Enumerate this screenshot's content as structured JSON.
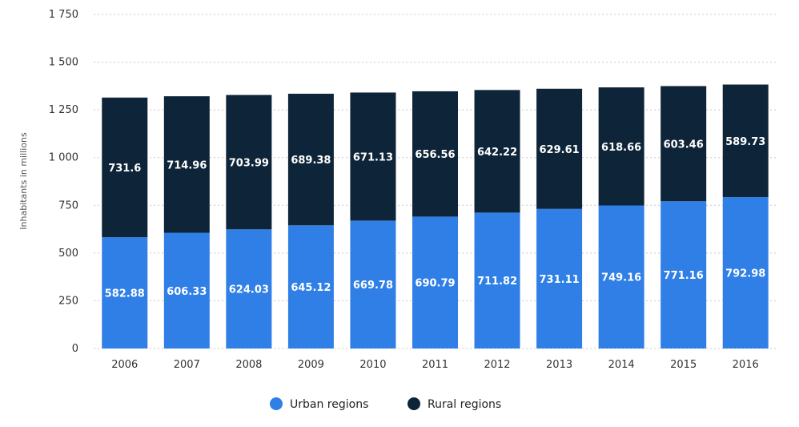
{
  "chart_data": {
    "type": "bar",
    "stacked": true,
    "categories": [
      "2006",
      "2007",
      "2008",
      "2009",
      "2010",
      "2011",
      "2012",
      "2013",
      "2014",
      "2015",
      "2016"
    ],
    "series": [
      {
        "name": "Urban regions",
        "color": "#2f7fe6",
        "values": [
          582.88,
          606.33,
          624.03,
          645.12,
          669.78,
          690.79,
          711.82,
          731.11,
          749.16,
          771.16,
          792.98
        ],
        "labels": [
          "582.88",
          "606.33",
          "624.03",
          "645.12",
          "669.78",
          "690.79",
          "711.82",
          "731.11",
          "749.16",
          "771.16",
          "792.98"
        ]
      },
      {
        "name": "Rural regions",
        "color": "#0e2438",
        "values": [
          731.6,
          714.96,
          703.99,
          689.38,
          671.13,
          656.56,
          642.22,
          629.61,
          618.66,
          603.46,
          589.73
        ],
        "labels": [
          "731.6",
          "714.96",
          "703.99",
          "689.38",
          "671.13",
          "656.56",
          "642.22",
          "629.61",
          "618.66",
          "603.46",
          "589.73"
        ]
      }
    ],
    "ylabel": "Inhabitants in millions",
    "ylim": [
      0,
      1750
    ],
    "yticks": [
      0,
      250,
      500,
      750,
      1000,
      1250,
      1500,
      1750
    ],
    "ytick_labels": [
      "0",
      "250",
      "500",
      "750",
      "1 000",
      "1 250",
      "1 500",
      "1 750"
    ],
    "grid": true,
    "legend_position": "bottom-center"
  }
}
